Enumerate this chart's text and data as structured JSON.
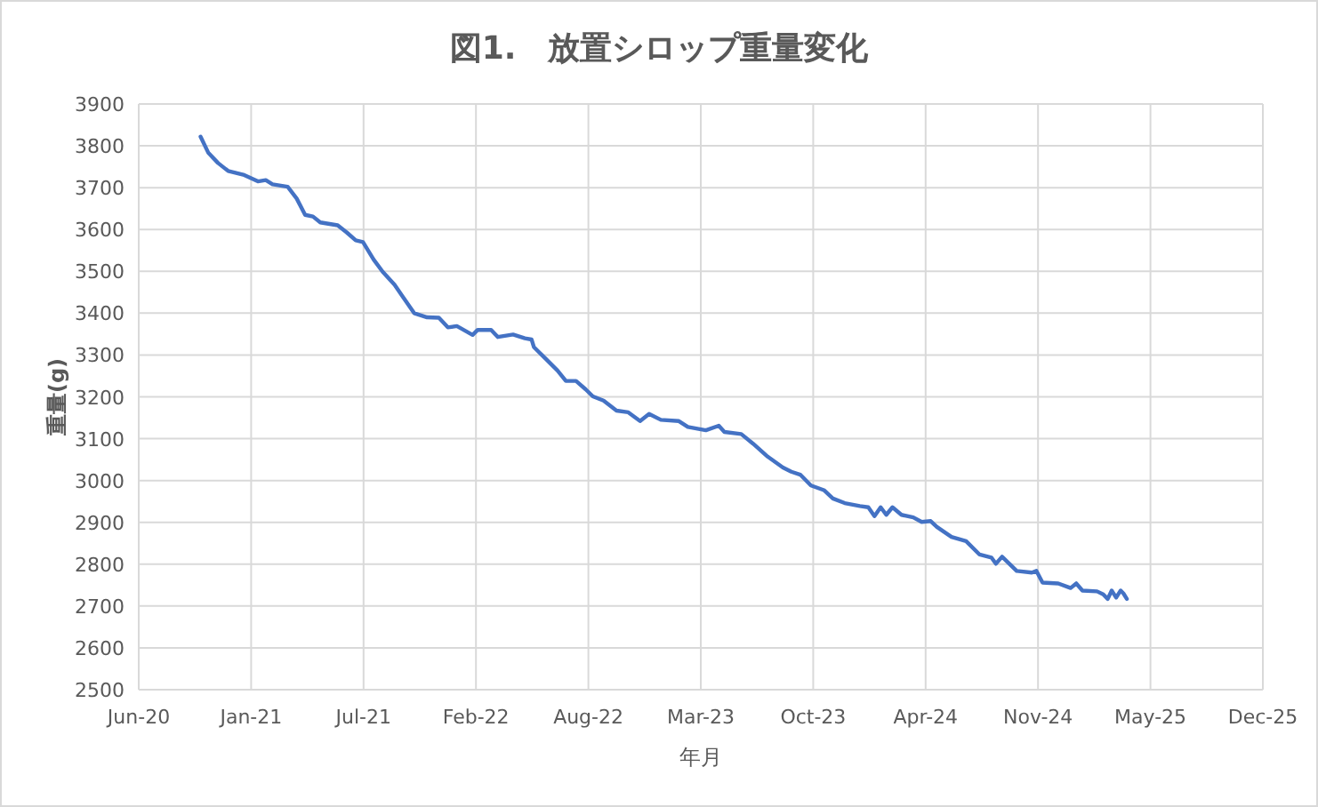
{
  "chart_data": {
    "type": "line",
    "title": "図1.　放置シロップ重量変化",
    "xlabel": "年月",
    "ylabel": "重量(g)",
    "series": [
      {
        "color": "#4472c4",
        "x": [
          "2020-10-08",
          "2020-10-22",
          "2020-11-08",
          "2020-11-26",
          "2020-12-23",
          "2021-01-18",
          "2021-02-01",
          "2021-02-13",
          "2021-03-12",
          "2021-03-28",
          "2021-04-12",
          "2021-04-26",
          "2021-05-09",
          "2021-06-09",
          "2021-06-25",
          "2021-07-11",
          "2021-07-24",
          "2021-08-12",
          "2021-08-28",
          "2021-09-18",
          "2021-10-04",
          "2021-10-23",
          "2021-11-15",
          "2021-12-06",
          "2021-12-22",
          "2022-01-07",
          "2022-02-04",
          "2022-02-13",
          "2022-03-09",
          "2022-03-21",
          "2022-04-17",
          "2022-05-08",
          "2022-05-20",
          "2022-05-24",
          "2022-06-14",
          "2022-07-05",
          "2022-07-20",
          "2022-08-07",
          "2022-08-24",
          "2022-09-06",
          "2022-09-25",
          "2022-10-18",
          "2022-11-08",
          "2022-11-29",
          "2022-12-15",
          "2023-01-05",
          "2023-02-06",
          "2023-02-22",
          "2023-03-26",
          "2023-04-18",
          "2023-04-28",
          "2023-05-28",
          "2023-06-18",
          "2023-07-14",
          "2023-08-10",
          "2023-08-25",
          "2023-09-10",
          "2023-09-29",
          "2023-10-22",
          "2023-11-07",
          "2023-11-28",
          "2023-12-25",
          "2024-01-09",
          "2024-01-20",
          "2024-01-31",
          "2024-02-10",
          "2024-02-21",
          "2024-03-08",
          "2024-03-29",
          "2024-04-13",
          "2024-04-29",
          "2024-05-10",
          "2024-06-05",
          "2024-07-01",
          "2024-07-25",
          "2024-08-15",
          "2024-08-23",
          "2024-09-03",
          "2024-09-29",
          "2024-10-26",
          "2024-11-03",
          "2024-11-14",
          "2024-12-12",
          "2025-01-03",
          "2025-01-13",
          "2025-01-24",
          "2025-02-19",
          "2025-03-02",
          "2025-03-10",
          "2025-03-17",
          "2025-03-25",
          "2025-04-02",
          "2025-04-07",
          "2025-04-13"
        ],
        "values": [
          3822,
          3783,
          3759,
          3740,
          3731,
          3715,
          3718,
          3708,
          3702,
          3674,
          3635,
          3631,
          3617,
          3610,
          3593,
          3574,
          3570,
          3528,
          3499,
          3468,
          3437,
          3400,
          3390,
          3389,
          3366,
          3369,
          3348,
          3360,
          3360,
          3343,
          3349,
          3340,
          3337,
          3319,
          3291,
          3263,
          3238,
          3238,
          3218,
          3201,
          3191,
          3167,
          3163,
          3142,
          3159,
          3145,
          3142,
          3128,
          3120,
          3131,
          3116,
          3111,
          3088,
          3057,
          3031,
          3021,
          3014,
          2988,
          2977,
          2957,
          2946,
          2939,
          2936,
          2915,
          2936,
          2918,
          2936,
          2918,
          2912,
          2901,
          2903,
          2889,
          2865,
          2855,
          2823,
          2816,
          2801,
          2818,
          2784,
          2780,
          2784,
          2756,
          2754,
          2743,
          2754,
          2737,
          2735,
          2728,
          2717,
          2737,
          2720,
          2737,
          2730,
          2717
        ]
      }
    ],
    "xlim": [
      "2020-06-20",
      "2025-12-11"
    ],
    "xticks": [
      {
        "value": "2020-06-20",
        "label": "Jun-20"
      },
      {
        "value": "2021-01-06",
        "label": "Jan-21"
      },
      {
        "value": "2021-07-25",
        "label": "Jul-21"
      },
      {
        "value": "2022-02-10",
        "label": "Feb-22"
      },
      {
        "value": "2022-08-29",
        "label": "Aug-22"
      },
      {
        "value": "2023-03-17",
        "label": "Mar-23"
      },
      {
        "value": "2023-10-03",
        "label": "Oct-23"
      },
      {
        "value": "2024-04-20",
        "label": "Apr-24"
      },
      {
        "value": "2024-11-06",
        "label": "Nov-24"
      },
      {
        "value": "2025-05-25",
        "label": "May-25"
      },
      {
        "value": "2025-12-11",
        "label": "Dec-25"
      }
    ],
    "ylim": [
      2500,
      3900
    ],
    "yticks": [
      2500,
      2600,
      2700,
      2800,
      2900,
      3000,
      3100,
      3200,
      3300,
      3400,
      3500,
      3600,
      3700,
      3800,
      3900
    ],
    "grid": true,
    "marker": "none",
    "line_style": "solid"
  }
}
